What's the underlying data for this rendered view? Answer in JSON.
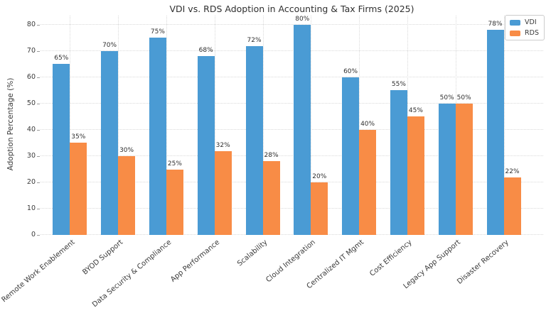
{
  "title": "VDI vs. RDS Adoption in Accounting & Tax Firms (2025)",
  "y_axis_label": "Adoption Percentage (%)",
  "chart_data": {
    "type": "bar",
    "title": "VDI vs. RDS Adoption in Accounting & Tax Firms (2025)",
    "xlabel": "",
    "ylabel": "Adoption Percentage (%)",
    "categories": [
      "Remote Work Enablement",
      "BYOD Support",
      "Data Security & Compliance",
      "App Performance",
      "Scalability",
      "Cloud Integration",
      "Centralized IT Mgmt",
      "Cost Efficiency",
      "Legacy App Support",
      "Disaster Recovery"
    ],
    "series": [
      {
        "name": "VDI",
        "color": "#4a9bd4",
        "values": [
          65,
          70,
          75,
          68,
          72,
          80,
          60,
          55,
          50,
          78
        ],
        "labels": [
          "65%",
          "70%",
          "75%",
          "68%",
          "72%",
          "80%",
          "60%",
          "55%",
          "50%",
          "78%"
        ]
      },
      {
        "name": "RDS",
        "color": "#f88c46",
        "values": [
          35,
          30,
          25,
          32,
          28,
          20,
          40,
          45,
          50,
          22
        ],
        "labels": [
          "35%",
          "30%",
          "25%",
          "32%",
          "28%",
          "20%",
          "40%",
          "45%",
          "50%",
          "22%"
        ]
      }
    ],
    "yticks": [
      0,
      10,
      20,
      30,
      40,
      50,
      60,
      70,
      80
    ],
    "ytick_labels": [
      "0",
      "10",
      "20",
      "30",
      "40",
      "50",
      "60",
      "70",
      "80"
    ],
    "ylim": [
      0,
      83.5
    ],
    "grid": true,
    "grid_style": "dotted",
    "legend_position": "upper right"
  }
}
